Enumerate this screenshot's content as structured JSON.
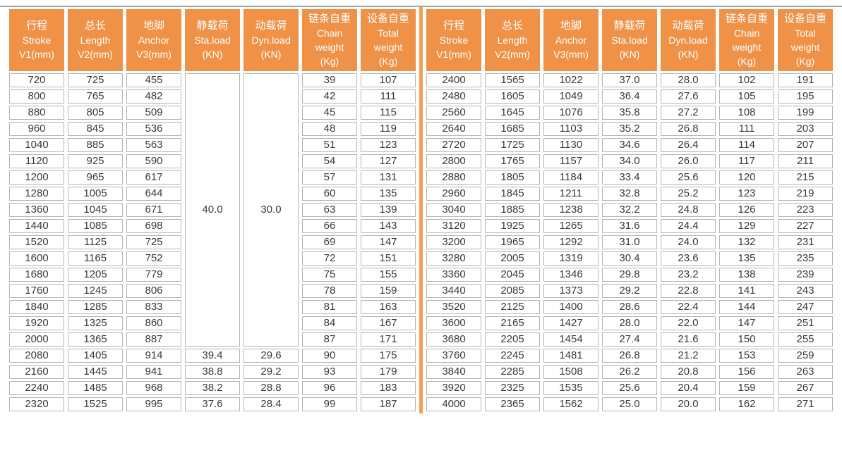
{
  "table": {
    "columns": [
      {
        "name": "stroke",
        "lines": [
          "行程",
          "Stroke",
          "V1(mm)"
        ]
      },
      {
        "name": "length",
        "lines": [
          "总长",
          "Length",
          "V2(mm)"
        ]
      },
      {
        "name": "anchor",
        "lines": [
          "地脚",
          "Anchor",
          "V3(mm)"
        ]
      },
      {
        "name": "static-load",
        "lines": [
          "静载荷",
          "Sta.load",
          "(KN)"
        ]
      },
      {
        "name": "dynamic-load",
        "lines": [
          "动载荷",
          "Dyn.load",
          "(KN)"
        ]
      },
      {
        "name": "chain-weight",
        "lines": [
          "链条自重",
          "Chain",
          "weight",
          "(Kg)"
        ]
      },
      {
        "name": "total-weight",
        "lines": [
          "设备自重",
          "Total",
          "weight",
          "(Kg)"
        ]
      }
    ],
    "left": {
      "merged": {
        "span": 17,
        "values": {
          "3": "40.0",
          "4": "30.0"
        }
      },
      "rows": [
        [
          "720",
          "725",
          "455",
          null,
          null,
          "39",
          "107"
        ],
        [
          "800",
          "765",
          "482",
          null,
          null,
          "42",
          "111"
        ],
        [
          "880",
          "805",
          "509",
          null,
          null,
          "45",
          "115"
        ],
        [
          "960",
          "845",
          "536",
          null,
          null,
          "48",
          "119"
        ],
        [
          "1040",
          "885",
          "563",
          null,
          null,
          "51",
          "123"
        ],
        [
          "1120",
          "925",
          "590",
          null,
          null,
          "54",
          "127"
        ],
        [
          "1200",
          "965",
          "617",
          null,
          null,
          "57",
          "131"
        ],
        [
          "1280",
          "1005",
          "644",
          null,
          null,
          "60",
          "135"
        ],
        [
          "1360",
          "1045",
          "671",
          null,
          null,
          "63",
          "139"
        ],
        [
          "1440",
          "1085",
          "698",
          null,
          null,
          "66",
          "143"
        ],
        [
          "1520",
          "1125",
          "725",
          null,
          null,
          "69",
          "147"
        ],
        [
          "1600",
          "1165",
          "752",
          null,
          null,
          "72",
          "151"
        ],
        [
          "1680",
          "1205",
          "779",
          null,
          null,
          "75",
          "155"
        ],
        [
          "1760",
          "1245",
          "806",
          null,
          null,
          "78",
          "159"
        ],
        [
          "1840",
          "1285",
          "833",
          null,
          null,
          "81",
          "163"
        ],
        [
          "1920",
          "1325",
          "860",
          null,
          null,
          "84",
          "167"
        ],
        [
          "2000",
          "1365",
          "887",
          null,
          null,
          "87",
          "171"
        ],
        [
          "2080",
          "1405",
          "914",
          "39.4",
          "29.6",
          "90",
          "175"
        ],
        [
          "2160",
          "1445",
          "941",
          "38.8",
          "29.2",
          "93",
          "179"
        ],
        [
          "2240",
          "1485",
          "968",
          "38.2",
          "28.8",
          "96",
          "183"
        ],
        [
          "2320",
          "1525",
          "995",
          "37.6",
          "28.4",
          "99",
          "187"
        ]
      ]
    },
    "right": {
      "merged": null,
      "rows": [
        [
          "2400",
          "1565",
          "1022",
          "37.0",
          "28.0",
          "102",
          "191"
        ],
        [
          "2480",
          "1605",
          "1049",
          "36.4",
          "27.6",
          "105",
          "195"
        ],
        [
          "2560",
          "1645",
          "1076",
          "35.8",
          "27.2",
          "108",
          "199"
        ],
        [
          "2640",
          "1685",
          "1103",
          "35.2",
          "26.8",
          "111",
          "203"
        ],
        [
          "2720",
          "1725",
          "1130",
          "34.6",
          "26.4",
          "114",
          "207"
        ],
        [
          "2800",
          "1765",
          "1157",
          "34.0",
          "26.0",
          "117",
          "211"
        ],
        [
          "2880",
          "1805",
          "1184",
          "33.4",
          "25.6",
          "120",
          "215"
        ],
        [
          "2960",
          "1845",
          "1211",
          "32.8",
          "25.2",
          "123",
          "219"
        ],
        [
          "3040",
          "1885",
          "1238",
          "32.2",
          "24.8",
          "126",
          "223"
        ],
        [
          "3120",
          "1925",
          "1265",
          "31.6",
          "24.4",
          "129",
          "227"
        ],
        [
          "3200",
          "1965",
          "1292",
          "31.0",
          "24.0",
          "132",
          "231"
        ],
        [
          "3280",
          "2005",
          "1319",
          "30.4",
          "23.6",
          "135",
          "235"
        ],
        [
          "3360",
          "2045",
          "1346",
          "29.8",
          "23.2",
          "138",
          "239"
        ],
        [
          "3440",
          "2085",
          "1373",
          "29.2",
          "22.8",
          "141",
          "243"
        ],
        [
          "3520",
          "2125",
          "1400",
          "28.6",
          "22.4",
          "144",
          "247"
        ],
        [
          "3600",
          "2165",
          "1427",
          "28.0",
          "22.0",
          "147",
          "251"
        ],
        [
          "3680",
          "2205",
          "1454",
          "27.4",
          "21.6",
          "150",
          "255"
        ],
        [
          "3760",
          "2245",
          "1481",
          "26.8",
          "21.2",
          "153",
          "259"
        ],
        [
          "3840",
          "2285",
          "1508",
          "26.2",
          "20.8",
          "156",
          "263"
        ],
        [
          "3920",
          "2325",
          "1535",
          "25.6",
          "20.4",
          "159",
          "267"
        ],
        [
          "4000",
          "2365",
          "1562",
          "25.0",
          "20.0",
          "162",
          "271"
        ]
      ]
    }
  },
  "colors": {
    "header_bg": "#EF9147",
    "divider": "#F1A04F",
    "cell_border": "#B4B4B4",
    "top_line": "#A6A6A6",
    "cell_text": "#3A3A3A",
    "header_text": "#FFFFFF"
  }
}
